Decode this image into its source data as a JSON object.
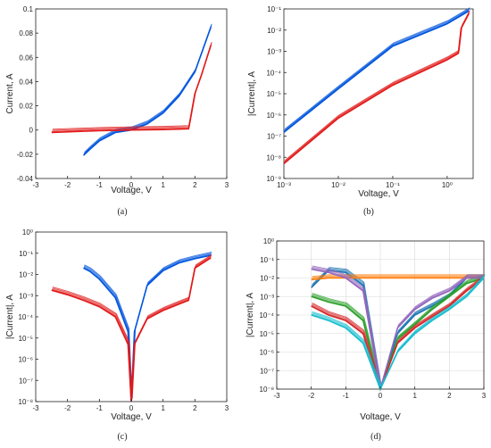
{
  "colors": {
    "set": "#0055dd",
    "reset": "#e21a1a",
    "axis": "#222222",
    "grid": "#d9d9d9"
  },
  "chart_data": [
    {
      "type": "line",
      "caption": "(a)",
      "xlabel": "Voltage, V",
      "ylabel": "Current, A",
      "xlim": [
        -3,
        3
      ],
      "ylim": [
        -0.04,
        0.1
      ],
      "x_ticks": [
        "-3",
        "-2",
        "-1",
        "0",
        "1",
        "2",
        "3"
      ],
      "y_ticks": [
        "-0.04",
        "-0.02",
        "0",
        "0.02",
        "0.04",
        "0.06",
        "0.08",
        "0.1"
      ],
      "y_scale": "linear",
      "series": [
        {
          "color": "#0055dd",
          "x": [
            -1.5,
            -1.3,
            -1.0,
            -0.5,
            0,
            0.5,
            1.0,
            1.5,
            2.0,
            2.5
          ],
          "y": [
            -0.021,
            -0.016,
            -0.009,
            -0.002,
            0,
            0.005,
            0.014,
            0.028,
            0.048,
            0.085
          ]
        },
        {
          "color": "#e21a1a",
          "x": [
            -2.5,
            -1.5,
            -1.0,
            0,
            1.0,
            1.8,
            2.0,
            2.2,
            2.5
          ],
          "y": [
            -0.002,
            -0.001,
            -0.0006,
            0,
            0.0004,
            0.001,
            0.03,
            0.045,
            0.07
          ]
        }
      ]
    },
    {
      "type": "line",
      "caption": "(b)",
      "xlabel": "Voltage, V",
      "ylabel": "|Current|, A",
      "xlim": [
        0.001,
        3
      ],
      "ylim": [
        1e-09,
        0.1
      ],
      "x_scale": "log",
      "y_scale": "log",
      "x_ticks": [
        "10⁻³",
        "10⁻²",
        "10⁻¹",
        "10⁰"
      ],
      "y_ticks": [
        "10⁻⁹",
        "10⁻⁸",
        "10⁻⁷",
        "10⁻⁶",
        "10⁻⁵",
        "10⁻⁴",
        "10⁻³",
        "10⁻²",
        "10⁻¹"
      ],
      "series": [
        {
          "color": "#0055dd",
          "x": [
            0.001,
            0.01,
            0.1,
            1.0,
            2.5
          ],
          "y": [
            1.5e-07,
            1.7e-05,
            0.00175,
            0.02,
            0.08
          ]
        },
        {
          "color": "#e21a1a",
          "x": [
            0.001,
            0.01,
            0.1,
            1.0,
            1.6,
            1.8,
            2.5
          ],
          "y": [
            5e-09,
            7e-07,
            2.5e-05,
            0.0004,
            0.0008,
            0.012,
            0.06
          ]
        }
      ]
    },
    {
      "type": "line",
      "caption": "(c)",
      "xlabel": "Voltage, V",
      "ylabel": "|Current|, A",
      "xlim": [
        -3,
        3
      ],
      "ylim": [
        1e-08,
        1
      ],
      "y_scale": "log",
      "x_ticks": [
        "-3",
        "-2",
        "-1",
        "0",
        "1",
        "2",
        "3"
      ],
      "y_ticks": [
        "10⁻⁸",
        "10⁻⁷",
        "10⁻⁶",
        "10⁻⁵",
        "10⁻⁴",
        "10⁻³",
        "10⁻²",
        "10⁻¹",
        "10⁰"
      ],
      "series": [
        {
          "color": "#0055dd",
          "x": [
            -1.5,
            -1.3,
            -1.0,
            -0.5,
            -0.1,
            0,
            0.1,
            0.5,
            1.0,
            1.5,
            2.0,
            2.5
          ],
          "y": [
            0.02,
            0.014,
            0.006,
            0.0008,
            2e-05,
            1e-08,
            2e-05,
            0.003,
            0.015,
            0.035,
            0.055,
            0.08
          ]
        },
        {
          "color": "#e21a1a",
          "x": [
            -2.5,
            -2.0,
            -1.5,
            -1.0,
            -0.5,
            -0.1,
            0,
            0.1,
            0.5,
            1.0,
            1.5,
            1.8,
            2.0,
            2.5
          ],
          "y": [
            0.0018,
            0.0011,
            0.0006,
            0.0003,
            0.0001,
            5e-06,
            1e-08,
            5e-06,
            8e-05,
            0.0002,
            0.0004,
            0.0006,
            0.02,
            0.06
          ]
        }
      ]
    },
    {
      "type": "line",
      "caption": "(d)",
      "xlabel": "Voltage, V",
      "ylabel": "|Current|, A",
      "xlim": [
        -3,
        3
      ],
      "ylim": [
        1e-08,
        1
      ],
      "y_scale": "log",
      "grid": true,
      "x_ticks": [
        "-3",
        "-2",
        "-1",
        "0",
        "1",
        "2",
        "3"
      ],
      "y_ticks": [
        "10⁻⁸",
        "10⁻⁷",
        "10⁻⁶",
        "10⁻⁵",
        "10⁻⁴",
        "10⁻³",
        "10⁻²",
        "10⁻¹",
        "10⁰"
      ],
      "series": [
        {
          "color": "#1f77b4",
          "x": [
            -2,
            -1.5,
            -1,
            -0.5,
            0,
            0.5,
            1,
            1.5,
            2,
            2.5,
            3
          ],
          "y": [
            0.003,
            0.025,
            0.02,
            0.004,
            1e-08,
            1e-05,
            0.0001,
            0.0003,
            0.001,
            0.01,
            0.01
          ]
        },
        {
          "color": "#ff7f0e",
          "x": [
            -2,
            -1.5,
            -1,
            -0.5,
            0,
            0.5,
            1,
            1.5,
            2,
            2.5,
            3
          ],
          "y": [
            0.008,
            0.01,
            0.01,
            0.01,
            0.01,
            0.01,
            0.01,
            0.01,
            0.01,
            0.01,
            0.01
          ]
        },
        {
          "color": "#2ca02c",
          "x": [
            -2,
            -1.5,
            -1,
            -0.5,
            0,
            0.5,
            1,
            1.5,
            2,
            2.5,
            3
          ],
          "y": [
            0.001,
            0.0005,
            0.0003,
            5e-05,
            1e-08,
            5e-06,
            3e-05,
            0.0002,
            0.001,
            0.005,
            0.01
          ]
        },
        {
          "color": "#d62728",
          "x": [
            -2,
            -1.5,
            -1,
            -0.5,
            0,
            0.5,
            1,
            1.5,
            2,
            2.5,
            3
          ],
          "y": [
            0.0003,
            0.0001,
            5e-05,
            1e-05,
            1e-08,
            3e-06,
            2e-05,
            8e-05,
            0.0003,
            0.002,
            0.01
          ]
        },
        {
          "color": "#9467bd",
          "x": [
            -2,
            -1.5,
            -1,
            -0.5,
            0,
            0.5,
            1,
            1.5,
            2,
            2.5,
            3
          ],
          "y": [
            0.03,
            0.02,
            0.01,
            0.002,
            1e-08,
            2e-05,
            0.0002,
            0.0008,
            0.002,
            0.01,
            0.01
          ]
        },
        {
          "color": "#17becf",
          "x": [
            -2,
            -1.5,
            -1,
            -0.5,
            0,
            0.5,
            1,
            1.5,
            2,
            2.5,
            3
          ],
          "y": [
            0.0001,
            5e-05,
            2e-05,
            3e-06,
            1e-08,
            1e-06,
            1e-05,
            5e-05,
            0.0002,
            0.001,
            0.01
          ]
        }
      ]
    }
  ]
}
